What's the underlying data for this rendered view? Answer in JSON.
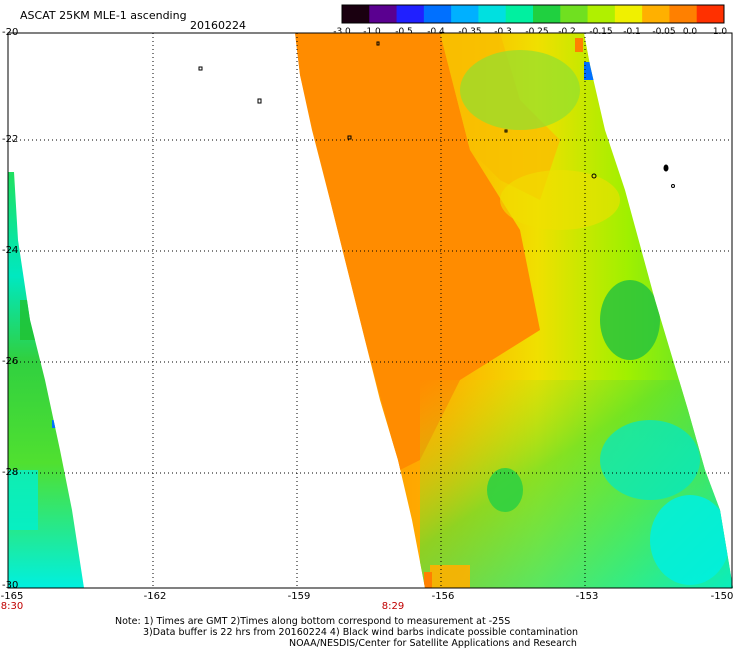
{
  "header": {
    "product": "ASCAT 25KM MLE-1 ascending",
    "date": "20160224"
  },
  "colorbar": {
    "labels": [
      "-3.0",
      "-1.0",
      "-0.5",
      "-0.4",
      "-0.35",
      "-0.3",
      "-0.25",
      "-0.2",
      "-0.15",
      "-0.1",
      "-0.05",
      "0.0",
      "1.0"
    ],
    "colors": [
      "#1a0010",
      "#5a0090",
      "#2020ff",
      "#0070ff",
      "#00b0ff",
      "#00e0e0",
      "#00f0a0",
      "#20d040",
      "#70e020",
      "#b0f000",
      "#f0f000",
      "#ffb000",
      "#ff8000",
      "#ff3000"
    ]
  },
  "axes": {
    "lat_labels": [
      "-20",
      "-22",
      "-24",
      "-26",
      "-28",
      "-30"
    ],
    "lon_labels": [
      "-165",
      "-162",
      "-159",
      "-156",
      "-153",
      "-150"
    ]
  },
  "time_labels": [
    "8:30",
    "8:29"
  ],
  "notes": {
    "line1": "Note: 1) Times are GMT 2)Times along bottom correspond to measurement at -25S",
    "line2": "3)Data buffer is 22 hrs from 20160224 4) Black wind barbs indicate possible contamination",
    "line3": "NOAA/NESDIS/Center for Satellite Applications and Research"
  }
}
